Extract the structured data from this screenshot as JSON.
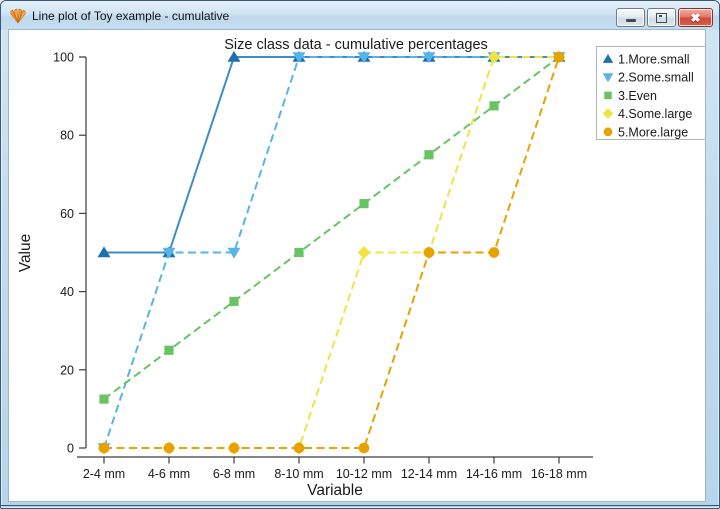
{
  "window": {
    "title": "Line plot of Toy example - cumulative",
    "icon": "genstat-shell-icon",
    "controls": {
      "minimize_label": "minimize",
      "restore_label": "restore",
      "close_label": "close"
    }
  },
  "chart_data": {
    "type": "line",
    "title": "Size class data - cumulative percentages",
    "xlabel": "Variable",
    "ylabel": "Value",
    "ylim": [
      0,
      100
    ],
    "yticks": [
      0,
      20,
      40,
      60,
      80,
      100
    ],
    "grid": false,
    "legend_position": "top-right",
    "categories": [
      "2-4 mm",
      "4-6 mm",
      "6-8 mm",
      "8-10 mm",
      "10-12 mm",
      "12-14 mm",
      "14-16 mm",
      "16-18 mm"
    ],
    "series": [
      {
        "name": "1.More.small",
        "marker": "triangle-up",
        "line_style": "solid",
        "color": "#1d6fae",
        "line_color": "#3f8cc6",
        "values": [
          50,
          50,
          100,
          100,
          100,
          100,
          100,
          100
        ]
      },
      {
        "name": "2.Some.small",
        "marker": "triangle-down",
        "line_style": "dashed",
        "color": "#56b4e9",
        "line_color": "#56b4e9",
        "values": [
          0,
          50,
          50,
          100,
          100,
          100,
          100,
          100
        ]
      },
      {
        "name": "3.Even",
        "marker": "square",
        "line_style": "dashed",
        "color": "#68c462",
        "line_color": "#68c462",
        "values": [
          12.5,
          25,
          37.5,
          50,
          62.5,
          75,
          87.5,
          100
        ]
      },
      {
        "name": "4.Some.large",
        "marker": "diamond",
        "line_style": "dashed",
        "color": "#f0e442",
        "line_color": "#f0e442",
        "values": [
          0,
          0,
          0,
          0,
          50,
          50,
          100,
          100
        ]
      },
      {
        "name": "5.More.large",
        "marker": "circle",
        "line_style": "dashed",
        "color": "#e8a200",
        "line_color": "#e8a200",
        "values": [
          0,
          0,
          0,
          0,
          0,
          50,
          50,
          100
        ]
      }
    ]
  }
}
